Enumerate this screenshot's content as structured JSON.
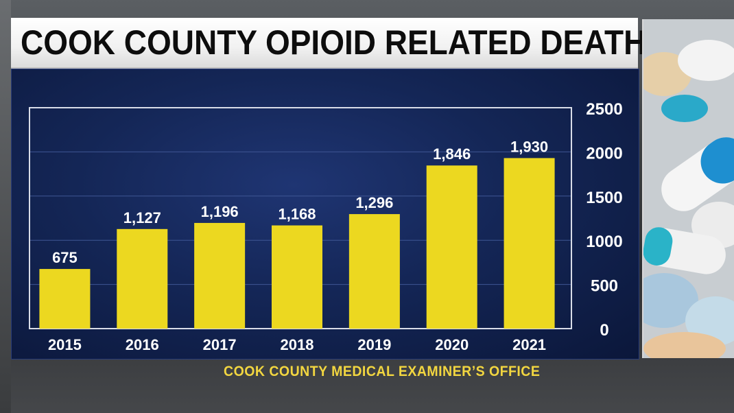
{
  "title": "COOK COUNTY OPIOID RELATED DEATHS",
  "source": "COOK COUNTY MEDICAL EXAMINER’S OFFICE",
  "colors": {
    "bar": "#ecd820",
    "panel": "#142656",
    "source_text": "#f2d640",
    "gridline": "#3f5694"
  },
  "chart_data": {
    "type": "bar",
    "categories": [
      "2015",
      "2016",
      "2017",
      "2018",
      "2019",
      "2020",
      "2021"
    ],
    "values": [
      675,
      1127,
      1196,
      1168,
      1296,
      1846,
      1930
    ],
    "value_labels": [
      "675",
      "1,127",
      "1,196",
      "1,168",
      "1,296",
      "1,846",
      "1,930"
    ],
    "title": "COOK COUNTY OPIOID RELATED DEATHS",
    "xlabel": "",
    "ylabel": "",
    "ylim": [
      0,
      2500
    ],
    "yticks": [
      0,
      500,
      1000,
      1500,
      2000,
      2500
    ],
    "ytick_labels": [
      "0",
      "500",
      "1000",
      "1500",
      "2000",
      "2500"
    ],
    "y_axis_position": "right",
    "grid": true,
    "legend": "none"
  },
  "side_image": "pills-photo"
}
